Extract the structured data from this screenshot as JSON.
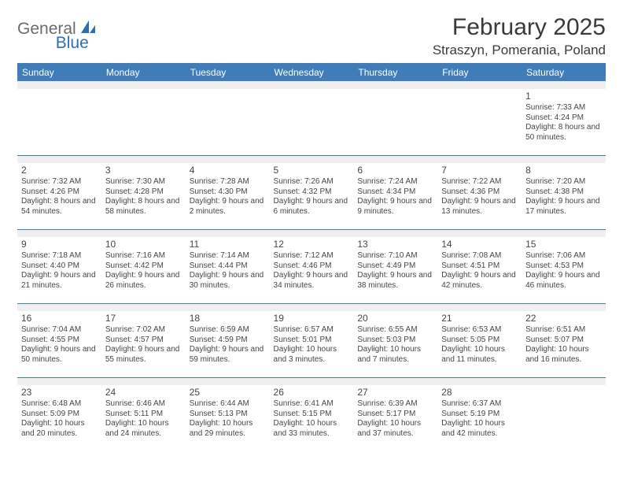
{
  "logo": {
    "part1": "General",
    "part2": "Blue"
  },
  "title": "February 2025",
  "location": "Straszyn, Pomerania, Poland",
  "colors": {
    "header_bar": "#3f7cb8",
    "spacer": "#efefef",
    "text": "#464646",
    "logo_gray": "#6b6b6b",
    "logo_blue": "#2d6fb5"
  },
  "weekdays": [
    "Sunday",
    "Monday",
    "Tuesday",
    "Wednesday",
    "Thursday",
    "Friday",
    "Saturday"
  ],
  "weeks": [
    [
      null,
      null,
      null,
      null,
      null,
      null,
      {
        "n": "1",
        "sr": "Sunrise: 7:33 AM",
        "ss": "Sunset: 4:24 PM",
        "dl": "Daylight: 8 hours and 50 minutes."
      }
    ],
    [
      {
        "n": "2",
        "sr": "Sunrise: 7:32 AM",
        "ss": "Sunset: 4:26 PM",
        "dl": "Daylight: 8 hours and 54 minutes."
      },
      {
        "n": "3",
        "sr": "Sunrise: 7:30 AM",
        "ss": "Sunset: 4:28 PM",
        "dl": "Daylight: 8 hours and 58 minutes."
      },
      {
        "n": "4",
        "sr": "Sunrise: 7:28 AM",
        "ss": "Sunset: 4:30 PM",
        "dl": "Daylight: 9 hours and 2 minutes."
      },
      {
        "n": "5",
        "sr": "Sunrise: 7:26 AM",
        "ss": "Sunset: 4:32 PM",
        "dl": "Daylight: 9 hours and 6 minutes."
      },
      {
        "n": "6",
        "sr": "Sunrise: 7:24 AM",
        "ss": "Sunset: 4:34 PM",
        "dl": "Daylight: 9 hours and 9 minutes."
      },
      {
        "n": "7",
        "sr": "Sunrise: 7:22 AM",
        "ss": "Sunset: 4:36 PM",
        "dl": "Daylight: 9 hours and 13 minutes."
      },
      {
        "n": "8",
        "sr": "Sunrise: 7:20 AM",
        "ss": "Sunset: 4:38 PM",
        "dl": "Daylight: 9 hours and 17 minutes."
      }
    ],
    [
      {
        "n": "9",
        "sr": "Sunrise: 7:18 AM",
        "ss": "Sunset: 4:40 PM",
        "dl": "Daylight: 9 hours and 21 minutes."
      },
      {
        "n": "10",
        "sr": "Sunrise: 7:16 AM",
        "ss": "Sunset: 4:42 PM",
        "dl": "Daylight: 9 hours and 26 minutes."
      },
      {
        "n": "11",
        "sr": "Sunrise: 7:14 AM",
        "ss": "Sunset: 4:44 PM",
        "dl": "Daylight: 9 hours and 30 minutes."
      },
      {
        "n": "12",
        "sr": "Sunrise: 7:12 AM",
        "ss": "Sunset: 4:46 PM",
        "dl": "Daylight: 9 hours and 34 minutes."
      },
      {
        "n": "13",
        "sr": "Sunrise: 7:10 AM",
        "ss": "Sunset: 4:49 PM",
        "dl": "Daylight: 9 hours and 38 minutes."
      },
      {
        "n": "14",
        "sr": "Sunrise: 7:08 AM",
        "ss": "Sunset: 4:51 PM",
        "dl": "Daylight: 9 hours and 42 minutes."
      },
      {
        "n": "15",
        "sr": "Sunrise: 7:06 AM",
        "ss": "Sunset: 4:53 PM",
        "dl": "Daylight: 9 hours and 46 minutes."
      }
    ],
    [
      {
        "n": "16",
        "sr": "Sunrise: 7:04 AM",
        "ss": "Sunset: 4:55 PM",
        "dl": "Daylight: 9 hours and 50 minutes."
      },
      {
        "n": "17",
        "sr": "Sunrise: 7:02 AM",
        "ss": "Sunset: 4:57 PM",
        "dl": "Daylight: 9 hours and 55 minutes."
      },
      {
        "n": "18",
        "sr": "Sunrise: 6:59 AM",
        "ss": "Sunset: 4:59 PM",
        "dl": "Daylight: 9 hours and 59 minutes."
      },
      {
        "n": "19",
        "sr": "Sunrise: 6:57 AM",
        "ss": "Sunset: 5:01 PM",
        "dl": "Daylight: 10 hours and 3 minutes."
      },
      {
        "n": "20",
        "sr": "Sunrise: 6:55 AM",
        "ss": "Sunset: 5:03 PM",
        "dl": "Daylight: 10 hours and 7 minutes."
      },
      {
        "n": "21",
        "sr": "Sunrise: 6:53 AM",
        "ss": "Sunset: 5:05 PM",
        "dl": "Daylight: 10 hours and 11 minutes."
      },
      {
        "n": "22",
        "sr": "Sunrise: 6:51 AM",
        "ss": "Sunset: 5:07 PM",
        "dl": "Daylight: 10 hours and 16 minutes."
      }
    ],
    [
      {
        "n": "23",
        "sr": "Sunrise: 6:48 AM",
        "ss": "Sunset: 5:09 PM",
        "dl": "Daylight: 10 hours and 20 minutes."
      },
      {
        "n": "24",
        "sr": "Sunrise: 6:46 AM",
        "ss": "Sunset: 5:11 PM",
        "dl": "Daylight: 10 hours and 24 minutes."
      },
      {
        "n": "25",
        "sr": "Sunrise: 6:44 AM",
        "ss": "Sunset: 5:13 PM",
        "dl": "Daylight: 10 hours and 29 minutes."
      },
      {
        "n": "26",
        "sr": "Sunrise: 6:41 AM",
        "ss": "Sunset: 5:15 PM",
        "dl": "Daylight: 10 hours and 33 minutes."
      },
      {
        "n": "27",
        "sr": "Sunrise: 6:39 AM",
        "ss": "Sunset: 5:17 PM",
        "dl": "Daylight: 10 hours and 37 minutes."
      },
      {
        "n": "28",
        "sr": "Sunrise: 6:37 AM",
        "ss": "Sunset: 5:19 PM",
        "dl": "Daylight: 10 hours and 42 minutes."
      },
      null
    ]
  ]
}
